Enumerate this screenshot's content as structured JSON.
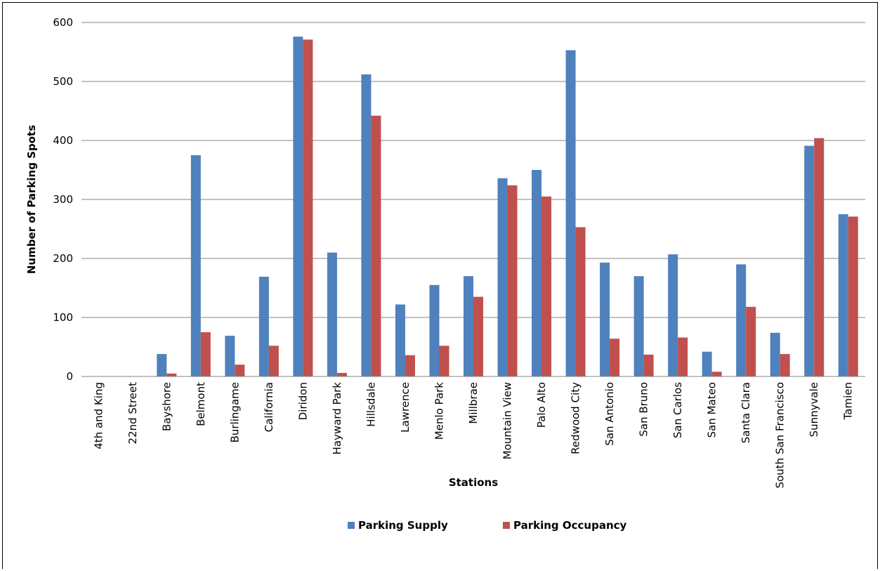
{
  "chart_data": {
    "type": "bar",
    "title": "",
    "xlabel": "Stations",
    "ylabel": "Number of Parking Spots",
    "ylim": [
      0,
      600
    ],
    "yticks": [
      0,
      100,
      200,
      300,
      400,
      500,
      600
    ],
    "grid": true,
    "legend_position": "bottom",
    "categories": [
      "4th and King",
      "22nd Street",
      "Bayshore",
      "Belmont",
      "Burlingame",
      "California",
      "Diridon",
      "Hayward Park",
      "Hillsdale",
      "Lawrence",
      "Menlo Park",
      "Millbrae",
      "Mountain View",
      "Palo Alto",
      "Redwood City",
      "San Antonio",
      "San Bruno",
      "San Carlos",
      "San Mateo",
      "Santa Clara",
      "South San Francisco",
      "Sunnyvale",
      "Tamien"
    ],
    "series": [
      {
        "name": "Parking Supply",
        "color": "#4F81BD",
        "values": [
          0,
          0,
          38,
          375,
          69,
          169,
          576,
          210,
          512,
          122,
          155,
          170,
          336,
          350,
          553,
          193,
          170,
          207,
          42,
          190,
          74,
          391,
          275
        ]
      },
      {
        "name": "Parking Occupancy",
        "color": "#C0504D",
        "values": [
          0,
          0,
          5,
          75,
          20,
          52,
          571,
          6,
          442,
          36,
          52,
          135,
          324,
          305,
          253,
          64,
          37,
          66,
          8,
          118,
          38,
          404,
          271
        ]
      }
    ]
  }
}
